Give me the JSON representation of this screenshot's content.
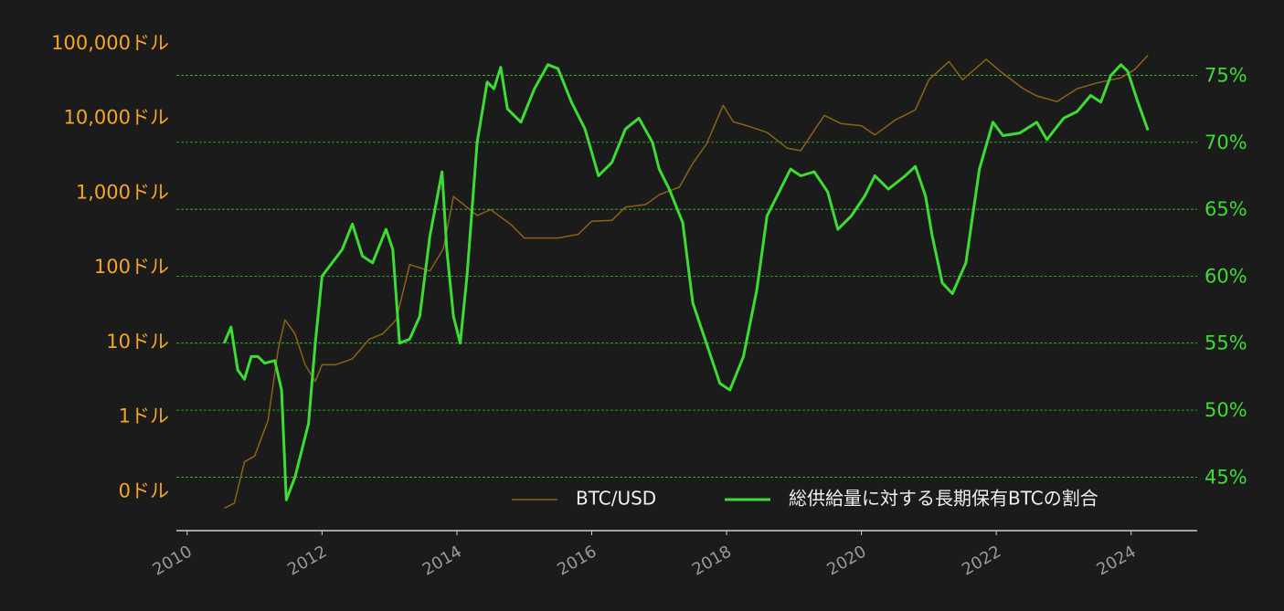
{
  "chart_data": {
    "type": "line",
    "xlim": [
      2009.84,
      2024.98
    ],
    "xticks": [
      2010,
      2012,
      2014,
      2016,
      2018,
      2020,
      2022,
      2024
    ],
    "ylim": [
      0.03,
      125000
    ],
    "y_log": true,
    "yticks": [
      {
        "value": 0.1,
        "label": "0ドル"
      },
      {
        "value": 1,
        "label": "1ドル"
      },
      {
        "value": 10,
        "label": "10ドル"
      },
      {
        "value": 100,
        "label": "100ドル"
      },
      {
        "value": 1000,
        "label": "1,000ドル"
      },
      {
        "value": 10000,
        "label": "10,000ドル"
      },
      {
        "value": 100000,
        "label": "100,000ドル"
      }
    ],
    "y2lim": [
      41,
      77.9
    ],
    "y2ticks": [
      {
        "value": 45,
        "label": "45%"
      },
      {
        "value": 50,
        "label": "50%"
      },
      {
        "value": 55,
        "label": "55%"
      },
      {
        "value": 60,
        "label": "60%"
      },
      {
        "value": 65,
        "label": "65%"
      },
      {
        "value": 70,
        "label": "70%"
      },
      {
        "value": 75,
        "label": "75%"
      }
    ],
    "grid": true,
    "legend": "bottom-right",
    "series": [
      {
        "name": "BTC/USD",
        "color": "#8a6414",
        "axis": "y",
        "x": [
          2010.55,
          2010.7,
          2010.85,
          2011.0,
          2011.2,
          2011.35,
          2011.45,
          2011.6,
          2011.75,
          2011.9,
          2012.0,
          2012.2,
          2012.45,
          2012.7,
          2012.9,
          2013.1,
          2013.3,
          2013.45,
          2013.6,
          2013.8,
          2013.95,
          2014.1,
          2014.3,
          2014.5,
          2014.8,
          2015.0,
          2015.2,
          2015.5,
          2015.8,
          2016.0,
          2016.3,
          2016.5,
          2016.8,
          2017.0,
          2017.3,
          2017.5,
          2017.7,
          2017.95,
          2018.1,
          2018.3,
          2018.6,
          2018.9,
          2019.1,
          2019.45,
          2019.7,
          2020.0,
          2020.2,
          2020.5,
          2020.8,
          2021.0,
          2021.3,
          2021.5,
          2021.85,
          2022.1,
          2022.4,
          2022.6,
          2022.9,
          2023.2,
          2023.5,
          2023.85,
          2024.05,
          2024.25
        ],
        "values": [
          0.06,
          0.07,
          0.25,
          0.3,
          0.9,
          8,
          20,
          13,
          5,
          3,
          5,
          5,
          6,
          11,
          13,
          20,
          110,
          100,
          90,
          180,
          900,
          700,
          500,
          600,
          380,
          250,
          250,
          250,
          280,
          420,
          430,
          650,
          700,
          950,
          1200,
          2500,
          4500,
          15000,
          9000,
          8000,
          6500,
          4000,
          3700,
          11000,
          8500,
          8000,
          6000,
          9500,
          13000,
          33000,
          58000,
          33000,
          62000,
          40000,
          25000,
          20000,
          16800,
          25000,
          30000,
          35000,
          45000,
          70000
        ]
      },
      {
        "name": "総供給量に対する長期保有BTCの割合",
        "color": "#3ddc34",
        "axis": "y2",
        "x": [
          2010.55,
          2010.65,
          2010.75,
          2010.85,
          2010.95,
          2011.05,
          2011.15,
          2011.3,
          2011.4,
          2011.47,
          2011.6,
          2011.7,
          2011.8,
          2011.9,
          2012.0,
          2012.15,
          2012.3,
          2012.45,
          2012.6,
          2012.75,
          2012.95,
          2013.05,
          2013.15,
          2013.3,
          2013.45,
          2013.6,
          2013.78,
          2013.85,
          2013.95,
          2014.05,
          2014.15,
          2014.3,
          2014.45,
          2014.55,
          2014.65,
          2014.75,
          2014.95,
          2015.15,
          2015.35,
          2015.5,
          2015.7,
          2015.9,
          2016.1,
          2016.3,
          2016.5,
          2016.7,
          2016.9,
          2017.0,
          2017.15,
          2017.35,
          2017.5,
          2017.7,
          2017.9,
          2018.05,
          2018.25,
          2018.45,
          2018.6,
          2018.85,
          2018.95,
          2019.1,
          2019.3,
          2019.5,
          2019.65,
          2019.85,
          2020.05,
          2020.2,
          2020.4,
          2020.65,
          2020.8,
          2020.95,
          2021.05,
          2021.2,
          2021.35,
          2021.55,
          2021.75,
          2021.95,
          2022.1,
          2022.35,
          2022.6,
          2022.75,
          2023.0,
          2023.2,
          2023.4,
          2023.55,
          2023.7,
          2023.85,
          2023.95,
          2024.1,
          2024.25
        ],
        "values": [
          55,
          56.2,
          53,
          52.3,
          54,
          54,
          53.5,
          53.7,
          51.5,
          43.3,
          45,
          47,
          49,
          55,
          60,
          61,
          62,
          63.9,
          61.5,
          61,
          63.5,
          62,
          55,
          55.3,
          57,
          63,
          67.8,
          62,
          57,
          55,
          60,
          70,
          74.5,
          74,
          75.6,
          72.5,
          71.5,
          74,
          75.8,
          75.5,
          73,
          71,
          67.5,
          68.5,
          71,
          71.8,
          70,
          68,
          66.5,
          64,
          58,
          55,
          52,
          51.5,
          54,
          59,
          64.5,
          67,
          68,
          67.5,
          67.8,
          66.3,
          63.5,
          64.5,
          66,
          67.5,
          66.5,
          67.5,
          68.2,
          66,
          63,
          59.5,
          58.7,
          61,
          68,
          71.5,
          70.5,
          70.7,
          71.5,
          70.2,
          71.8,
          72.3,
          73.5,
          73,
          75,
          75.8,
          75.3,
          73,
          70.9
        ]
      }
    ]
  }
}
